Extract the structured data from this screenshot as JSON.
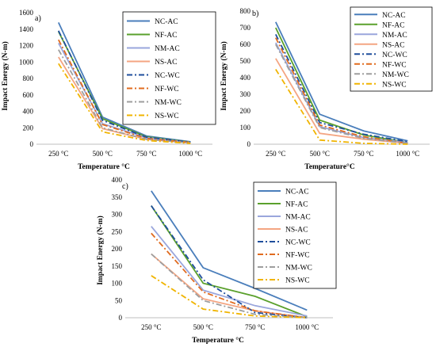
{
  "styles": {
    "NC-AC": {
      "color": "#4a7ebb",
      "dash": ""
    },
    "NF-AC": {
      "color": "#5aa02c",
      "dash": ""
    },
    "NM-AC": {
      "color": "#9aa6dc",
      "dash": ""
    },
    "NS-AC": {
      "color": "#f4a582",
      "dash": ""
    },
    "NC-WC": {
      "color": "#1f4e9c",
      "dash": "7,3,2,3"
    },
    "NF-WC": {
      "color": "#e06b1f",
      "dash": "7,3,2,3"
    },
    "NM-WC": {
      "color": "#9e9e9e",
      "dash": "7,3,2,3"
    },
    "NS-WC": {
      "color": "#f0b400",
      "dash": "7,3,2,3"
    }
  },
  "chart_data": [
    {
      "panel": "a)",
      "type": "line",
      "xlabel": "Temperature °C",
      "ylabel": "Impact Energy (N-m)",
      "categories": [
        "250 °C",
        "500 °C",
        "750 °C",
        "1000 °C"
      ],
      "ylim": [
        0,
        1600
      ],
      "yticks": [
        0,
        200,
        400,
        600,
        800,
        1000,
        1200,
        1400,
        1600
      ],
      "legend_position": "top-right",
      "series": [
        {
          "name": "NC-AC",
          "values": [
            1480,
            330,
            100,
            30
          ]
        },
        {
          "name": "NF-AC",
          "values": [
            1370,
            310,
            90,
            25
          ]
        },
        {
          "name": "NM-AC",
          "values": [
            1230,
            250,
            80,
            20
          ]
        },
        {
          "name": "NS-AC",
          "values": [
            1060,
            190,
            60,
            15
          ]
        },
        {
          "name": "NC-WC",
          "values": [
            1380,
            290,
            85,
            25
          ]
        },
        {
          "name": "NF-WC",
          "values": [
            1270,
            240,
            70,
            20
          ]
        },
        {
          "name": "NM-WC",
          "values": [
            1150,
            200,
            60,
            15
          ]
        },
        {
          "name": "NS-WC",
          "values": [
            980,
            150,
            45,
            10
          ]
        }
      ]
    },
    {
      "panel": "b)",
      "type": "line",
      "xlabel": "Temperature°C",
      "ylabel": "Impact Energy (N-m)",
      "categories": [
        "250 °C",
        "500 °C",
        "750 °C",
        "1000 °C"
      ],
      "ylim": [
        0,
        800
      ],
      "yticks": [
        0,
        100,
        200,
        300,
        400,
        500,
        600,
        700,
        800
      ],
      "legend_position": "top-right",
      "series": [
        {
          "name": "NC-AC",
          "values": [
            735,
            180,
            80,
            20
          ]
        },
        {
          "name": "NF-AC",
          "values": [
            700,
            145,
            55,
            10
          ]
        },
        {
          "name": "NM-AC",
          "values": [
            610,
            105,
            40,
            10
          ]
        },
        {
          "name": "NS-AC",
          "values": [
            515,
            65,
            30,
            5
          ]
        },
        {
          "name": "NC-WC",
          "values": [
            660,
            130,
            60,
            15
          ]
        },
        {
          "name": "NF-WC",
          "values": [
            640,
            115,
            45,
            5
          ]
        },
        {
          "name": "NM-WC",
          "values": [
            600,
            100,
            35,
            5
          ]
        },
        {
          "name": "NS-WC",
          "values": [
            450,
            25,
            5,
            0
          ]
        }
      ]
    },
    {
      "panel": "c)",
      "type": "line",
      "xlabel": "Temperature °C",
      "ylabel": "Impact Energy (N-m)",
      "categories": [
        "250 °C",
        "500 °C",
        "750 °C",
        "1000 °C"
      ],
      "ylim": [
        0,
        400
      ],
      "yticks": [
        0,
        50,
        100,
        150,
        200,
        250,
        300,
        350,
        400
      ],
      "legend_position": "top-right",
      "series": [
        {
          "name": "NC-AC",
          "values": [
            368,
            145,
            85,
            22
          ]
        },
        {
          "name": "NF-AC",
          "values": [
            325,
            100,
            62,
            3
          ]
        },
        {
          "name": "NM-AC",
          "values": [
            265,
            80,
            35,
            5
          ]
        },
        {
          "name": "NS-AC",
          "values": [
            185,
            55,
            20,
            0
          ]
        },
        {
          "name": "NC-WC",
          "values": [
            325,
            110,
            15,
            0
          ]
        },
        {
          "name": "NF-WC",
          "values": [
            245,
            75,
            20,
            0
          ]
        },
        {
          "name": "NM-WC",
          "values": [
            185,
            50,
            10,
            0
          ]
        },
        {
          "name": "NS-WC",
          "values": [
            122,
            25,
            5,
            0
          ]
        }
      ]
    }
  ]
}
